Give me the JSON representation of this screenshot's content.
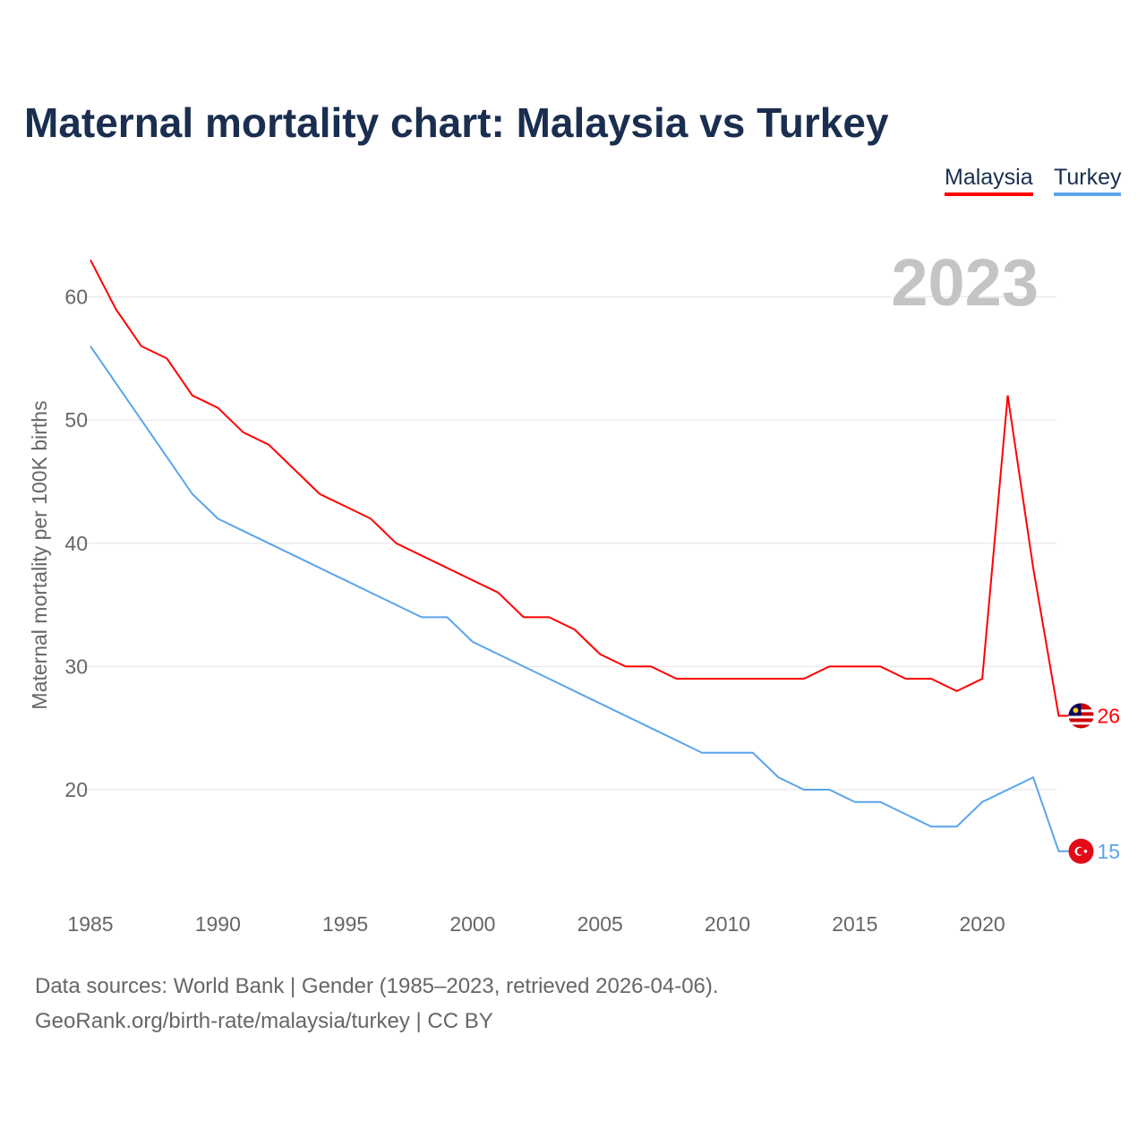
{
  "chart_data": {
    "type": "line",
    "title": "Maternal mortality chart: Malaysia vs Turkey",
    "xlabel": "",
    "ylabel": "Maternal mortality per 100K births",
    "year_label": "2023",
    "xlim": [
      1985,
      2023
    ],
    "ylim": [
      12,
      64
    ],
    "x_ticks": [
      1985,
      1990,
      1995,
      2000,
      2005,
      2010,
      2015,
      2020
    ],
    "y_ticks": [
      20,
      30,
      40,
      50,
      60
    ],
    "grid": true,
    "legend_position": "top-right",
    "x": [
      1985,
      1986,
      1987,
      1988,
      1989,
      1990,
      1991,
      1992,
      1993,
      1994,
      1995,
      1996,
      1997,
      1998,
      1999,
      2000,
      2001,
      2002,
      2003,
      2004,
      2005,
      2006,
      2007,
      2008,
      2009,
      2010,
      2011,
      2012,
      2013,
      2014,
      2015,
      2016,
      2017,
      2018,
      2019,
      2020,
      2021,
      2022,
      2023
    ],
    "series": [
      {
        "name": "Malaysia",
        "color": "#ff0000",
        "end_label": "26",
        "values": [
          63,
          59,
          56,
          55,
          52,
          51,
          49,
          48,
          46,
          44,
          43,
          42,
          40,
          39,
          38,
          37,
          36,
          34,
          34,
          33,
          31,
          30,
          30,
          29,
          29,
          29,
          29,
          29,
          29,
          30,
          30,
          30,
          29,
          29,
          28,
          29,
          52,
          38,
          26
        ]
      },
      {
        "name": "Turkey",
        "color": "#5ba4ea",
        "end_label": "15",
        "values": [
          56,
          53,
          50,
          47,
          44,
          42,
          41,
          40,
          39,
          38,
          37,
          36,
          35,
          34,
          34,
          32,
          31,
          30,
          29,
          28,
          27,
          26,
          25,
          24,
          23,
          23,
          23,
          21,
          20,
          20,
          19,
          19,
          18,
          17,
          17,
          19,
          20,
          21,
          15
        ]
      }
    ]
  },
  "footer": {
    "source": "Data sources: World Bank | Gender (1985–2023, retrieved 2026-04-06).",
    "link": "GeoRank.org/birth-rate/malaysia/turkey | CC BY"
  }
}
